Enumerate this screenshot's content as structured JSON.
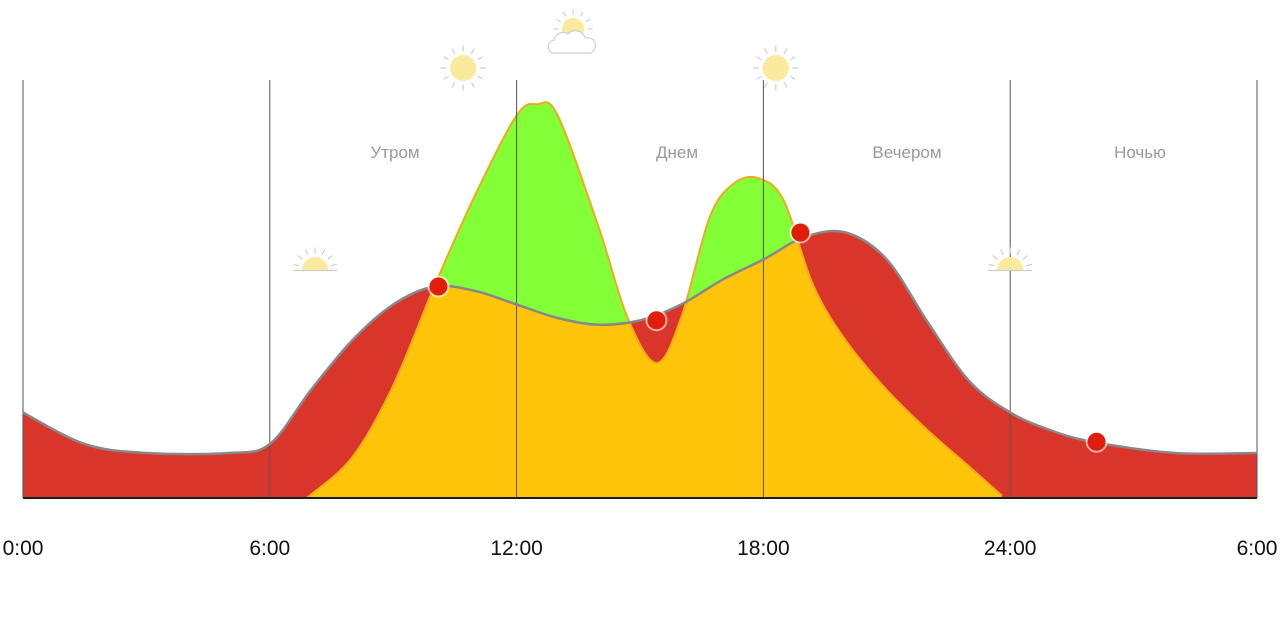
{
  "chart_data": {
    "type": "area",
    "x_ticks": [
      "0:00",
      "6:00",
      "12:00",
      "18:00",
      "24:00",
      "6:00"
    ],
    "periods": [
      "Утром",
      "Днем",
      "Вечером",
      "Ночью"
    ],
    "grid": "vertical lines at each tick",
    "series": [
      {
        "kind": "baseline",
        "points": [
          [
            0,
            38
          ],
          [
            1.5,
            24
          ],
          [
            3,
            20
          ],
          [
            5,
            20
          ],
          [
            6,
            24
          ],
          [
            7,
            48
          ],
          [
            8,
            70
          ],
          [
            9,
            86
          ],
          [
            10,
            94
          ],
          [
            11,
            92
          ],
          [
            12,
            86
          ],
          [
            13,
            80
          ],
          [
            14,
            77
          ],
          [
            15,
            79
          ],
          [
            16,
            86
          ],
          [
            17,
            97
          ],
          [
            18,
            106
          ],
          [
            19,
            116
          ],
          [
            20,
            118
          ],
          [
            21,
            106
          ],
          [
            22,
            78
          ],
          [
            23,
            52
          ],
          [
            24,
            38
          ],
          [
            25,
            30
          ],
          [
            26,
            25
          ],
          [
            28,
            20
          ],
          [
            30,
            20
          ]
        ]
      },
      {
        "kind": "activity",
        "points": [
          [
            6.9,
            0
          ],
          [
            8,
            18
          ],
          [
            9,
            50
          ],
          [
            10,
            94
          ],
          [
            11,
            135
          ],
          [
            12,
            170
          ],
          [
            12.5,
            175
          ],
          [
            13,
            170
          ],
          [
            14,
            120
          ],
          [
            14.7,
            80
          ],
          [
            15.4,
            60
          ],
          [
            16,
            80
          ],
          [
            16.7,
            125
          ],
          [
            17.3,
            140
          ],
          [
            17.9,
            142
          ],
          [
            18.5,
            132
          ],
          [
            19.2,
            95
          ],
          [
            20,
            70
          ],
          [
            21,
            48
          ],
          [
            22,
            30
          ],
          [
            23,
            14
          ],
          [
            23.8,
            1
          ]
        ]
      }
    ],
    "markers": [
      [
        10.1,
        94
      ],
      [
        15.4,
        79
      ],
      [
        18.9,
        118
      ],
      [
        26.1,
        25
      ]
    ],
    "colors": {
      "baseline_warm": "#e23c27",
      "baseline_gray": "#8b8b8b",
      "baseline_mid": "#9c7878",
      "baseline_line": "#888888",
      "activity_fill": "#fdc409",
      "activity_line": "#f3a91d",
      "surplus": "#82ff37",
      "deficit": "#d9352a",
      "marker": "#e21d0b",
      "sun": "#fbe99e",
      "sun_rays": "#cfcfcf",
      "grid": "#555555",
      "axis": "#1b1b1b"
    },
    "weather_icons": [
      {
        "icon": "sunrise-icon",
        "hour": 7.1,
        "elev": "horizon"
      },
      {
        "icon": "sun-icon",
        "hour": 10.7,
        "elev": "high"
      },
      {
        "icon": "sun-cloud-icon",
        "hour": 13.3,
        "elev": "top"
      },
      {
        "icon": "sun-icon",
        "hour": 18.3,
        "elev": "high"
      },
      {
        "icon": "sunset-icon",
        "hour": 24.0,
        "elev": "horizon"
      }
    ]
  }
}
